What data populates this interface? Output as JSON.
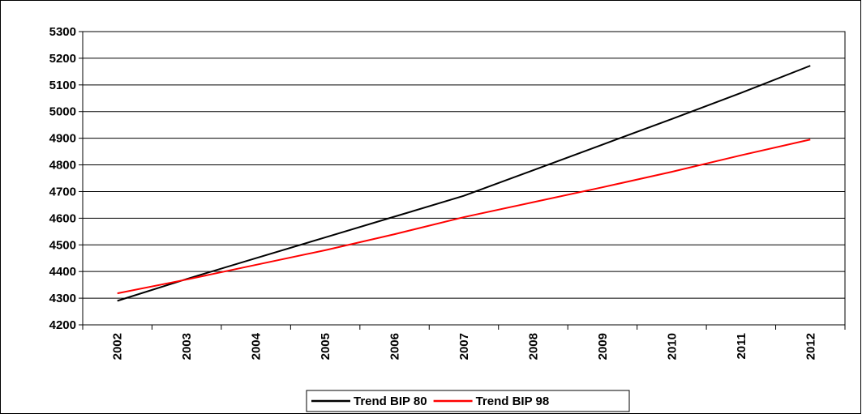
{
  "chart_data": {
    "type": "line",
    "categories": [
      "2002",
      "2003",
      "2004",
      "2005",
      "2006",
      "2007",
      "2008",
      "2009",
      "2010",
      "2011",
      "2012"
    ],
    "series": [
      {
        "name": "Trend BIP 80",
        "color": "#000000",
        "values": [
          4290,
          4372,
          4450,
          4528,
          4606,
          4684,
          4780,
          4876,
          4972,
          5070,
          5172
        ]
      },
      {
        "name": "Trend BIP 98",
        "color": "#ff0000",
        "values": [
          4318,
          4370,
          4425,
          4480,
          4540,
          4604,
          4660,
          4716,
          4774,
          4836,
          4895
        ]
      }
    ],
    "ylim": [
      4200,
      5300
    ],
    "yticks": [
      4200,
      4300,
      4400,
      4500,
      4600,
      4700,
      4800,
      4900,
      5000,
      5100,
      5200,
      5300
    ],
    "grid": true,
    "legend": "bottom"
  }
}
